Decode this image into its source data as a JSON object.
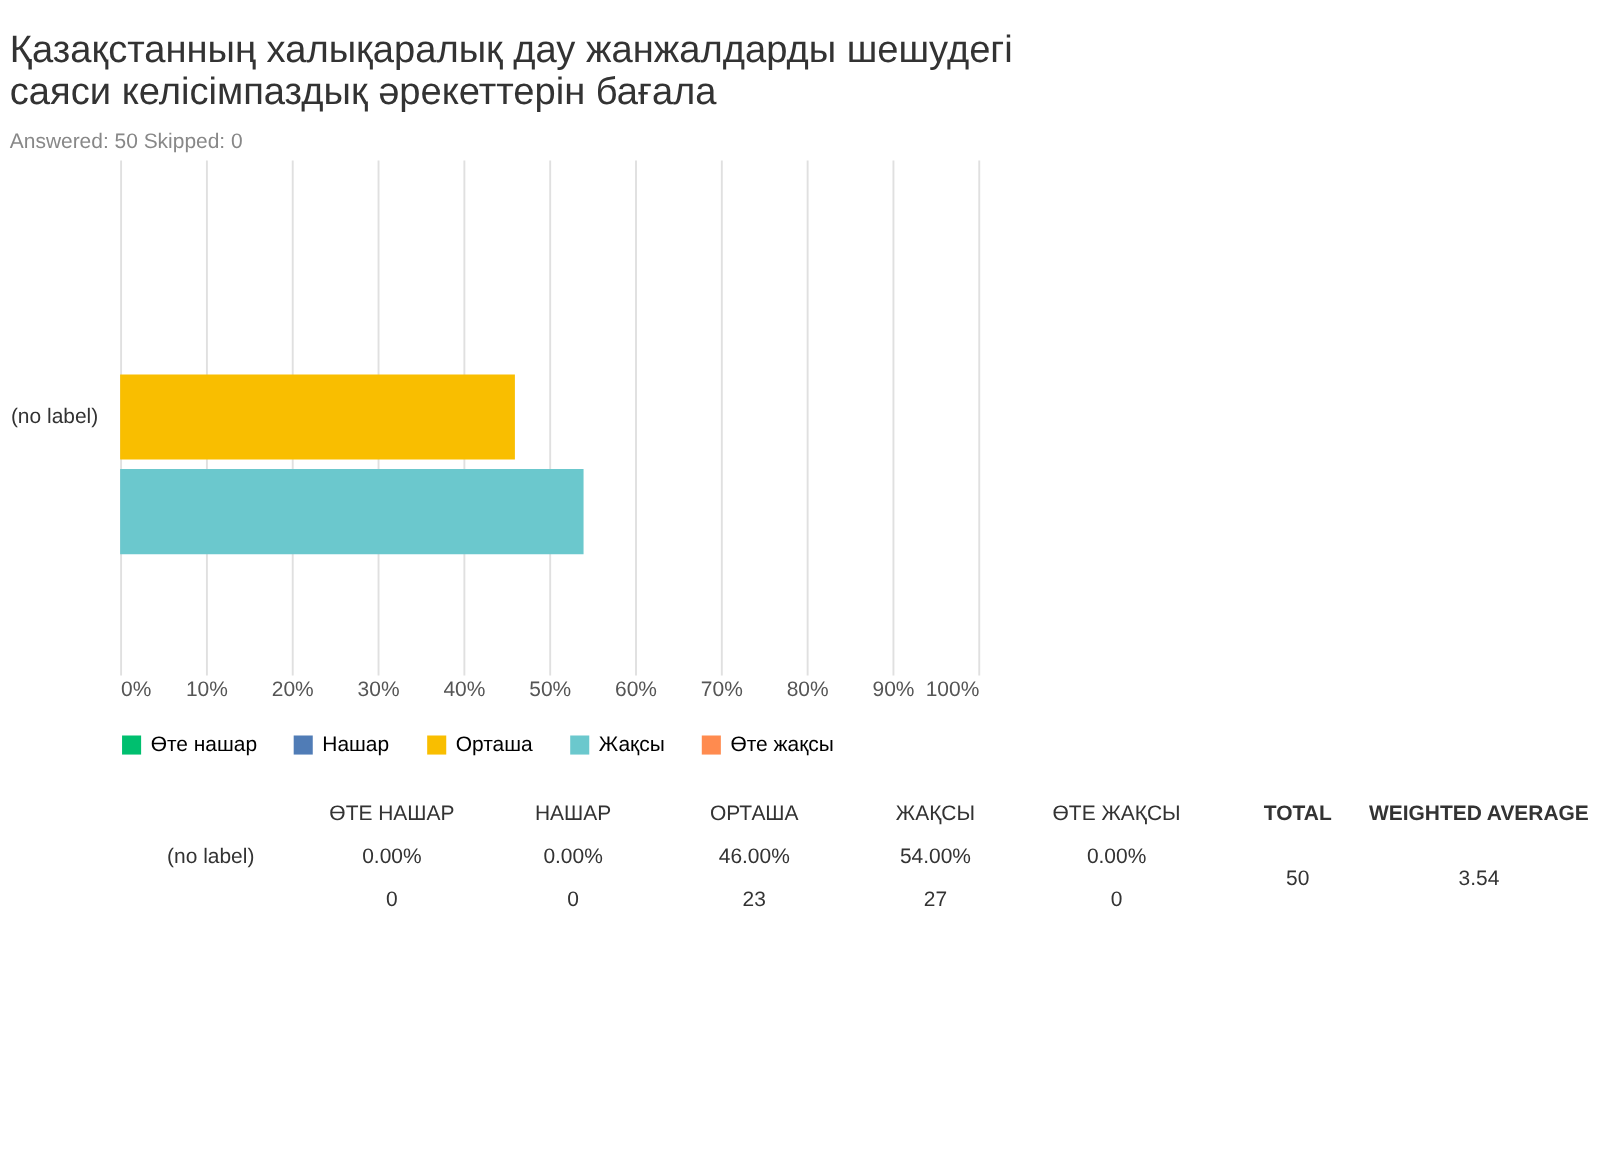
{
  "chart_data": {
    "type": "bar",
    "orientation": "horizontal",
    "title": "Қазақстанның халықаралық дау жанжалдарды шешудегі саяси келісімпаздық әрекеттерін бағала",
    "categories": [
      "(no label)"
    ],
    "series": [
      {
        "name": "Өте нашар",
        "color": "#00bf6f",
        "values": [
          0
        ]
      },
      {
        "name": "Нашар",
        "color": "#507cb6",
        "values": [
          0
        ]
      },
      {
        "name": "Орташа",
        "color": "#f9be00",
        "values": [
          46
        ]
      },
      {
        "name": "Жақсы",
        "color": "#6bc8cd",
        "values": [
          54
        ]
      },
      {
        "name": "Өте жақсы",
        "color": "#ff8b4f",
        "values": [
          0
        ]
      }
    ],
    "xlim": [
      0,
      100
    ],
    "xticks": [
      {
        "value": 0,
        "label": "0%"
      },
      {
        "value": 10,
        "label": "10%"
      },
      {
        "value": 20,
        "label": "20%"
      },
      {
        "value": 30,
        "label": "30%"
      },
      {
        "value": 40,
        "label": "40%"
      },
      {
        "value": 50,
        "label": "50%"
      },
      {
        "value": 60,
        "label": "60%"
      },
      {
        "value": 70,
        "label": "70%"
      },
      {
        "value": 80,
        "label": "80%"
      },
      {
        "value": 90,
        "label": "90%"
      },
      {
        "value": 100,
        "label": "100%"
      }
    ],
    "grid": "x",
    "legend": "bottom",
    "annotations": [
      "Answered: 50",
      "Skipped: 0",
      "ӨТЕ НАШАР",
      "НАШАР",
      "ОРТАША",
      "ЖАҚСЫ",
      "ӨТЕ ЖАҚСЫ",
      "TOTAL",
      "WEIGHTED AVERAGE",
      "0.00%",
      "0.00%",
      "46.00%",
      "54.00%",
      "0.00%",
      "0",
      "0",
      "23",
      "27",
      "0",
      "50",
      "3.54"
    ]
  }
}
